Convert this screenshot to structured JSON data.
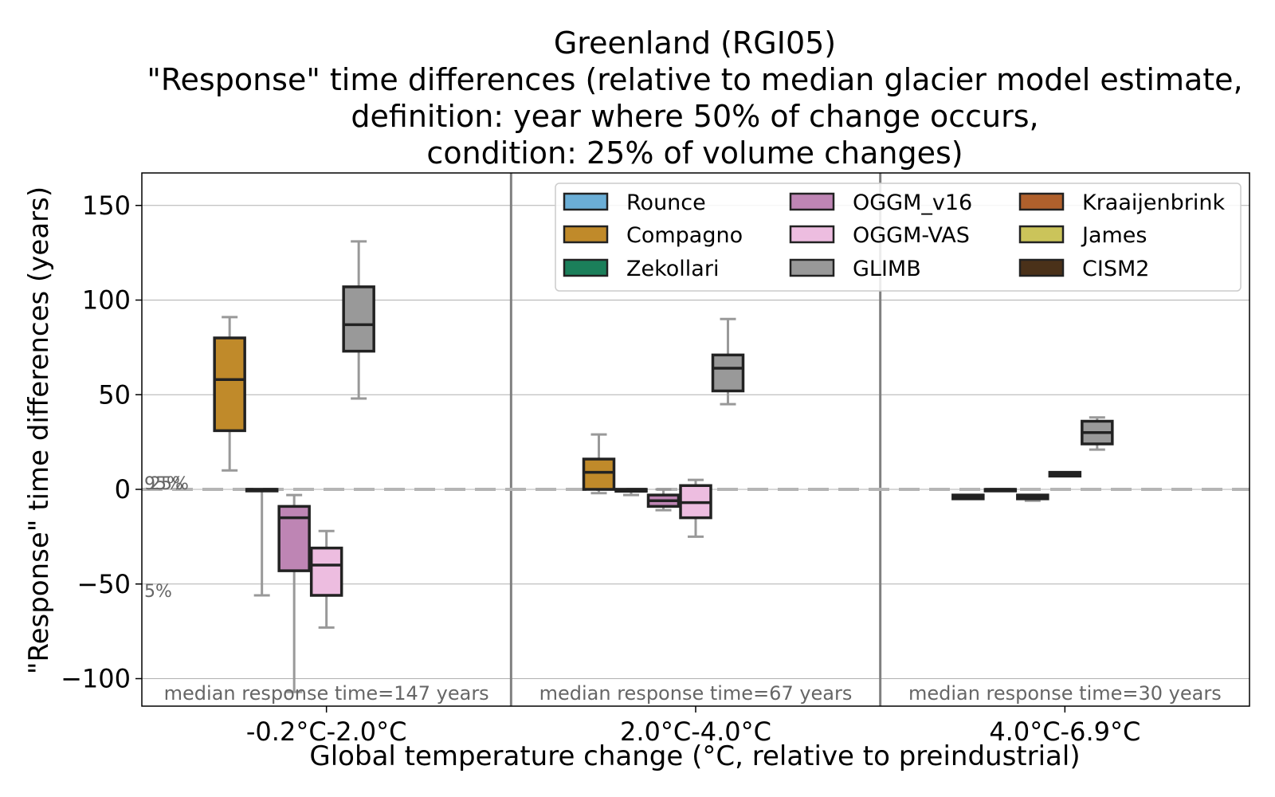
{
  "chart_data": {
    "type": "box",
    "title_lines": [
      "Greenland (RGI05)",
      "\"Response\" time differences (relative to median glacier model estimate,",
      "definition: year where 50% of change occurs,",
      "condition: 25% of volume changes)"
    ],
    "xlabel": "Global temperature change (°C, relative to preindustrial)",
    "ylabel": "\"Response\" time differences (years)",
    "ylim": [
      -107,
      168
    ],
    "yticks": [
      150,
      100,
      50,
      0,
      -50,
      -100
    ],
    "ytick_labels": [
      "150",
      "100",
      "50",
      "0",
      "−50",
      "−100"
    ],
    "grid": true,
    "legend_position": "top-right",
    "reference_line": 0,
    "percentile_labels": [
      "95%",
      "25%",
      "5%"
    ],
    "categories": [
      "-0.2°C-2.0°C",
      "2.0°C-4.0°C",
      "4.0°C-6.9°C"
    ],
    "annotations": [
      "median response time=147 years",
      "median response time=67 years",
      "median response time=30 years"
    ],
    "series": [
      {
        "name": "Rounce",
        "color": "#6baed6",
        "boxes": [
          null,
          null,
          null
        ]
      },
      {
        "name": "Compagno",
        "color": "#c08a2a",
        "boxes": [
          {
            "whislo": 10,
            "q1": 31,
            "med": 58,
            "q3": 80,
            "whishi": 91
          },
          {
            "whislo": -2,
            "q1": 0,
            "med": 9,
            "q3": 16,
            "whishi": 29
          },
          {
            "whislo": -5,
            "q1": -5,
            "med": -4,
            "q3": -3,
            "whishi": -3
          }
        ]
      },
      {
        "name": "Zekollari",
        "color": "#1b7f5a",
        "boxes": [
          {
            "whislo": -56,
            "q1": 0,
            "med": 0,
            "q3": 0,
            "whishi": 0
          },
          {
            "whislo": -3,
            "q1": -1,
            "med": 0,
            "q3": 0,
            "whishi": 0
          },
          {
            "whislo": 0,
            "q1": 0,
            "med": 0,
            "q3": 0,
            "whishi": 0
          }
        ]
      },
      {
        "name": "OGGM_v16",
        "color": "#be85b4",
        "boxes": [
          {
            "whislo": -107,
            "q1": -43,
            "med": -15,
            "q3": -9,
            "whishi": -3
          },
          {
            "whislo": -11,
            "q1": -9,
            "med": -6,
            "q3": -3,
            "whishi": 0
          },
          {
            "whislo": -6,
            "q1": -5,
            "med": -4,
            "q3": -3,
            "whishi": -3
          }
        ]
      },
      {
        "name": "OGGM-VAS",
        "color": "#edbde0",
        "boxes": [
          {
            "whislo": -73,
            "q1": -56,
            "med": -40,
            "q3": -31,
            "whishi": -22
          },
          {
            "whislo": -25,
            "q1": -15,
            "med": -7,
            "q3": 2,
            "whishi": 5
          },
          {
            "whislo": 7,
            "q1": 7,
            "med": 8,
            "q3": 9,
            "whishi": 9
          }
        ]
      },
      {
        "name": "GLIMB",
        "color": "#999999",
        "boxes": [
          {
            "whislo": 48,
            "q1": 73,
            "med": 87,
            "q3": 107,
            "whishi": 131
          },
          {
            "whislo": 45,
            "q1": 52,
            "med": 64,
            "q3": 71,
            "whishi": 90
          },
          {
            "whislo": 21,
            "q1": 24,
            "med": 30,
            "q3": 36,
            "whishi": 38
          }
        ]
      },
      {
        "name": "Kraaijenbrink",
        "color": "#b0602c",
        "boxes": [
          null,
          null,
          null
        ]
      },
      {
        "name": "James",
        "color": "#cbc45a",
        "boxes": [
          null,
          null,
          null
        ]
      },
      {
        "name": "CISM2",
        "color": "#4a3119",
        "boxes": [
          null,
          null,
          null
        ]
      }
    ]
  }
}
